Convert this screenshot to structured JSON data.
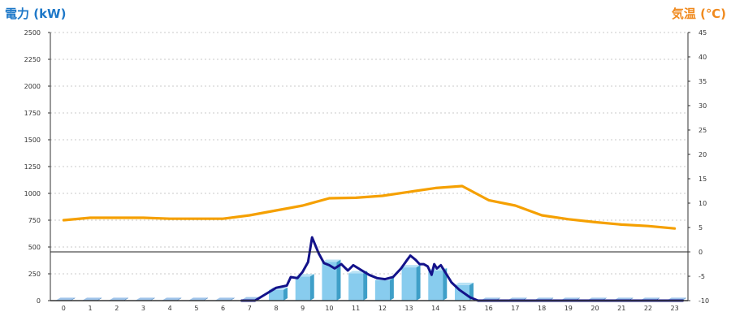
{
  "chart_data": {
    "type": "bar",
    "title_left": "電力 (kW)",
    "title_right": "気温 (℃)",
    "categories": [
      "0",
      "1",
      "2",
      "3",
      "4",
      "5",
      "6",
      "7",
      "8",
      "9",
      "10",
      "11",
      "12",
      "13",
      "14",
      "15",
      "16",
      "17",
      "18",
      "19",
      "20",
      "21",
      "22",
      "23"
    ],
    "y_left": {
      "ylim": [
        0,
        2500
      ],
      "ticks": [
        "0",
        "250",
        "500",
        "750",
        "1000",
        "1250",
        "1500",
        "1750",
        "2000",
        "2250",
        "2500"
      ]
    },
    "y_right": {
      "ylim": [
        -10,
        45
      ],
      "ticks": [
        "-10",
        "-5",
        "0",
        "5",
        "10",
        "15",
        "20",
        "25",
        "30",
        "35",
        "40",
        "45"
      ]
    },
    "grid": true,
    "series": [
      {
        "kind": "bar",
        "axis": "left",
        "values": [
          5,
          5,
          5,
          5,
          5,
          5,
          5,
          10,
          100,
          225,
          360,
          255,
          190,
          310,
          280,
          145,
          5,
          5,
          5,
          5,
          5,
          5,
          5,
          5
        ]
      },
      {
        "kind": "line",
        "axis": "left",
        "x": [
          6.7,
          7.2,
          7.6,
          8.0,
          8.4,
          8.55,
          8.8,
          9.0,
          9.2,
          9.35,
          9.6,
          9.8,
          10.0,
          10.2,
          10.45,
          10.7,
          10.9,
          11.2,
          11.5,
          11.8,
          12.1,
          12.4,
          12.7,
          12.9,
          13.05,
          13.25,
          13.4,
          13.55,
          13.7,
          13.85,
          13.95,
          14.05,
          14.2,
          14.4,
          14.6,
          14.9,
          15.3,
          15.6,
          15.8,
          16.5,
          17.5,
          18.5,
          19.5,
          20.5,
          21.5,
          22.5,
          23.3
        ],
        "values": [
          0,
          0,
          60,
          120,
          140,
          220,
          210,
          270,
          360,
          590,
          440,
          350,
          330,
          300,
          340,
          280,
          330,
          285,
          240,
          210,
          200,
          220,
          300,
          370,
          420,
          380,
          340,
          340,
          320,
          240,
          340,
          300,
          330,
          250,
          170,
          100,
          30,
          0,
          0,
          0,
          0,
          0,
          0,
          0,
          0,
          0,
          0
        ]
      },
      {
        "kind": "line",
        "axis": "right",
        "values": [
          6.5,
          7,
          7,
          7,
          6.8,
          6.8,
          6.8,
          7.5,
          8.5,
          9.5,
          11,
          11.1,
          11.5,
          12.3,
          13.1,
          13.5,
          10.6,
          9.5,
          7.5,
          6.7,
          6.1,
          5.6,
          5.3,
          4.8
        ]
      }
    ],
    "colors": {
      "bar": "#88ccee",
      "bar_dark": "#3f9fc8",
      "bar_zero": "#5d98d8",
      "power_line": "#13128a",
      "temp_line": "#f5a000",
      "title_left": "#1e78c8",
      "title_right": "#f08a1e",
      "grid": "#c8c8c8"
    }
  }
}
